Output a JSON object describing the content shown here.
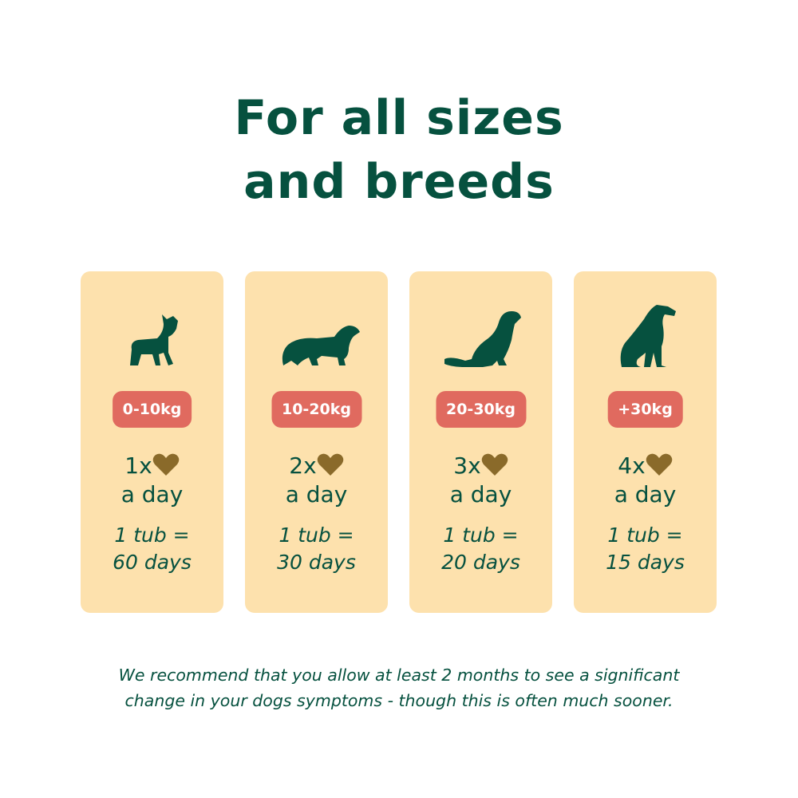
{
  "title_lines": [
    "For all sizes",
    "and breeds"
  ],
  "colors": {
    "text": "#06513f",
    "card": "#fde1ad",
    "badge": "#e06a5f",
    "treat": "#8a6a2a"
  },
  "cards": [
    {
      "icon": "french-bulldog-icon",
      "weight": "0-10kg",
      "dose": "1x",
      "per": "a day",
      "tub": "1 tub =",
      "days": "60 days"
    },
    {
      "icon": "spaniel-icon",
      "weight": "10-20kg",
      "dose": "2x",
      "per": "a day",
      "tub": "1 tub =",
      "days": "30 days"
    },
    {
      "icon": "retriever-icon",
      "weight": "20-30kg",
      "dose": "3x",
      "per": "a day",
      "tub": "1 tub =",
      "days": "20 days"
    },
    {
      "icon": "great-dane-icon",
      "weight": "+30kg",
      "dose": "4x",
      "per": "a day",
      "tub": "1 tub =",
      "days": "15 days"
    }
  ],
  "footer_lines": [
    "We recommend that you allow at least 2 months to see a significant",
    "change in your dogs symptoms - though this is often much sooner."
  ]
}
